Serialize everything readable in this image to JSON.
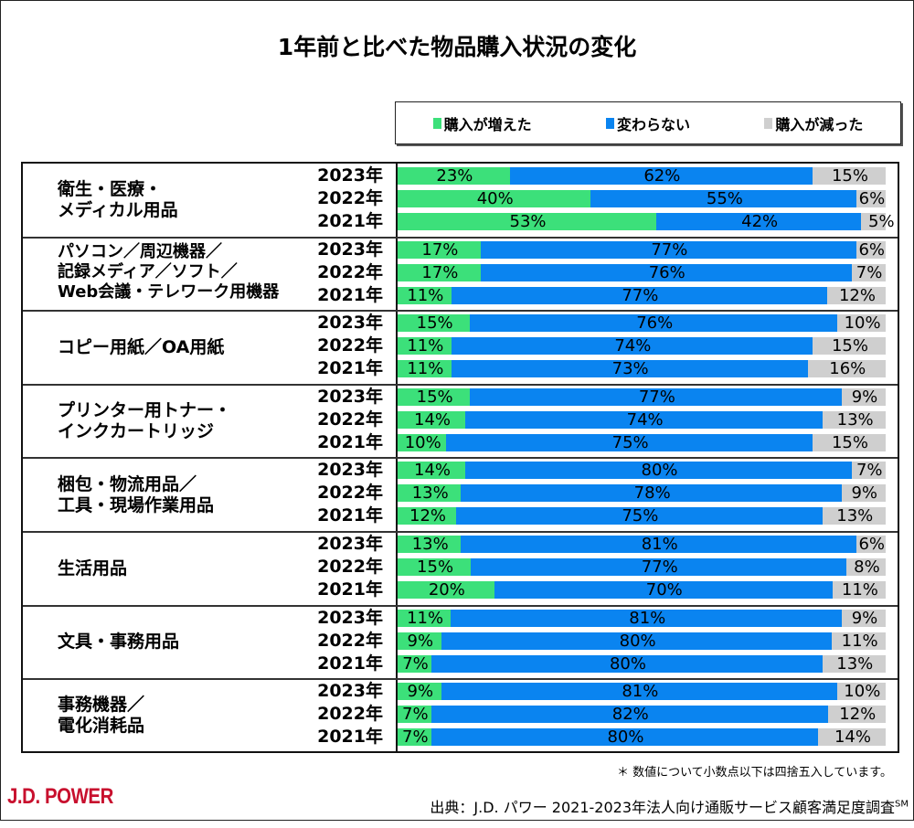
{
  "title": "1年前と比べた物品購入状況の変化",
  "legend": [
    {
      "label": "購入が増えた",
      "color": "#3ce07a"
    },
    {
      "label": "変わらない",
      "color": "#0a84f0"
    },
    {
      "label": "購入が減った",
      "color": "#cfcfcf"
    }
  ],
  "note": "＊ 数値について小数点以下は四捨五入しています。",
  "logo": "J.D. POWER",
  "source": "出典：J.D. パワー 2021-2023年法人向け通販サービス顧客満足度調査",
  "source_mark": "SM",
  "chart_data": {
    "type": "bar",
    "orientation": "horizontal",
    "stacked": true,
    "percent": true,
    "title": "1年前と比べた物品購入状況の変化",
    "xlabel": "",
    "ylabel": "",
    "xlim": [
      0,
      100
    ],
    "legend_position": "top-right",
    "series_names": [
      "購入が増えた",
      "変わらない",
      "購入が減った"
    ],
    "groups": [
      {
        "category": "衛生・医療・\nメディカル用品",
        "rows": [
          {
            "year": "2023年",
            "values": [
              23,
              62,
              15
            ]
          },
          {
            "year": "2022年",
            "values": [
              40,
              55,
              6
            ]
          },
          {
            "year": "2021年",
            "values": [
              53,
              42,
              5
            ]
          }
        ]
      },
      {
        "category": "パソコン／周辺機器／\n記録メディア／ソフト／\nWeb会議・テレワーク用機器",
        "rows": [
          {
            "year": "2023年",
            "values": [
              17,
              77,
              6
            ]
          },
          {
            "year": "2022年",
            "values": [
              17,
              76,
              7
            ]
          },
          {
            "year": "2021年",
            "values": [
              11,
              77,
              12
            ]
          }
        ]
      },
      {
        "category": "コピー用紙／OA用紙",
        "rows": [
          {
            "year": "2023年",
            "values": [
              15,
              76,
              10
            ]
          },
          {
            "year": "2022年",
            "values": [
              11,
              74,
              15
            ]
          },
          {
            "year": "2021年",
            "values": [
              11,
              73,
              16
            ]
          }
        ]
      },
      {
        "category": "プリンター用トナー・\nインクカートリッジ",
        "rows": [
          {
            "year": "2023年",
            "values": [
              15,
              77,
              9
            ]
          },
          {
            "year": "2022年",
            "values": [
              14,
              74,
              13
            ]
          },
          {
            "year": "2021年",
            "values": [
              10,
              75,
              15
            ]
          }
        ]
      },
      {
        "category": "梱包・物流用品／\n工具・現場作業用品",
        "rows": [
          {
            "year": "2023年",
            "values": [
              14,
              80,
              7
            ]
          },
          {
            "year": "2022年",
            "values": [
              13,
              78,
              9
            ]
          },
          {
            "year": "2021年",
            "values": [
              12,
              75,
              13
            ]
          }
        ]
      },
      {
        "category": "生活用品",
        "rows": [
          {
            "year": "2023年",
            "values": [
              13,
              81,
              6
            ]
          },
          {
            "year": "2022年",
            "values": [
              15,
              77,
              8
            ]
          },
          {
            "year": "2021年",
            "values": [
              20,
              70,
              11
            ]
          }
        ]
      },
      {
        "category": "文具・事務用品",
        "rows": [
          {
            "year": "2023年",
            "values": [
              11,
              81,
              9
            ]
          },
          {
            "year": "2022年",
            "values": [
              9,
              80,
              11
            ]
          },
          {
            "year": "2021年",
            "values": [
              7,
              80,
              13
            ]
          }
        ]
      },
      {
        "category": "事務機器／\n電化消耗品",
        "rows": [
          {
            "year": "2023年",
            "values": [
              9,
              81,
              10
            ]
          },
          {
            "year": "2022年",
            "values": [
              7,
              82,
              12
            ]
          },
          {
            "year": "2021年",
            "values": [
              7,
              80,
              14
            ]
          }
        ]
      }
    ]
  }
}
